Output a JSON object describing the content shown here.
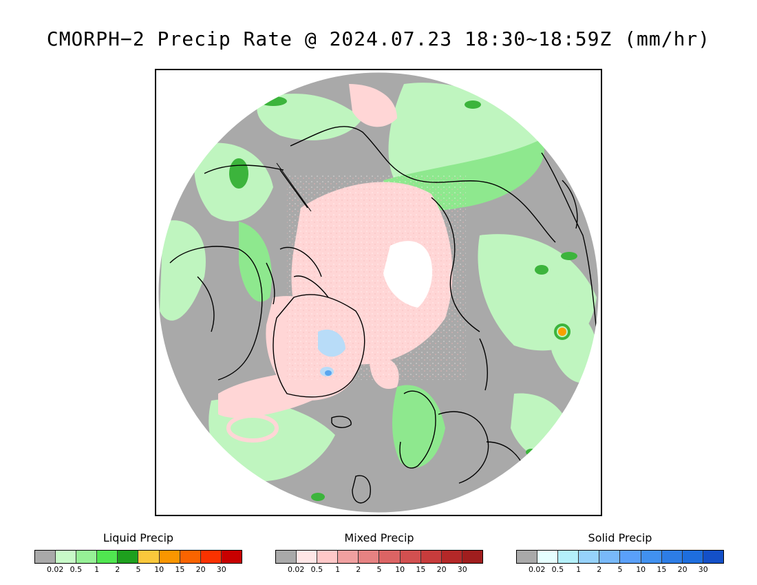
{
  "title": "CMORPH−2 Precip Rate @ 2024.07.23 18:30~18:59Z (mm/hr)",
  "map": {
    "projection": "north polar stereographic",
    "colors": {
      "no_precip": "#a9a9a9",
      "liquid_light": "#bff5bf",
      "liquid_medium": "#8ee88e",
      "liquid_heavy": "#3cb43c",
      "mixed_light": "#ffd6d6",
      "mixed_medium": "#f0a0a0",
      "solid_light": "#b8dcf8",
      "solid_medium": "#5aa6ee",
      "missing": "#ffffff",
      "coastline": "#000000",
      "orange_cell": "#f8a000"
    }
  },
  "legends": [
    {
      "title": "Liquid Precip",
      "colors": [
        "#a9a9a9",
        "#c8fac8",
        "#96f096",
        "#50e650",
        "#1ea01e",
        "#fac83c",
        "#fa9600",
        "#fa6400",
        "#fa3200",
        "#c80000"
      ],
      "ticks": [
        "0.02",
        "0.5",
        "1",
        "2",
        "5",
        "10",
        "15",
        "20",
        "30"
      ]
    },
    {
      "title": "Mixed Precip",
      "colors": [
        "#a9a9a9",
        "#ffe6e6",
        "#ffc8c8",
        "#f0a0a0",
        "#e68282",
        "#dc6464",
        "#d25050",
        "#c83c3c",
        "#b42828",
        "#a01e1e"
      ],
      "ticks": [
        "0.02",
        "0.5",
        "1",
        "2",
        "5",
        "10",
        "15",
        "20",
        "30"
      ]
    },
    {
      "title": "Solid Precip",
      "colors": [
        "#a9a9a9",
        "#e6ffff",
        "#b4f0fa",
        "#96d2fa",
        "#78b9fa",
        "#5aa0fa",
        "#4191f0",
        "#2d7de6",
        "#1e6ede",
        "#1450c8"
      ],
      "ticks": [
        "0.02",
        "0.5",
        "1",
        "2",
        "5",
        "10",
        "15",
        "20",
        "30"
      ]
    }
  ]
}
